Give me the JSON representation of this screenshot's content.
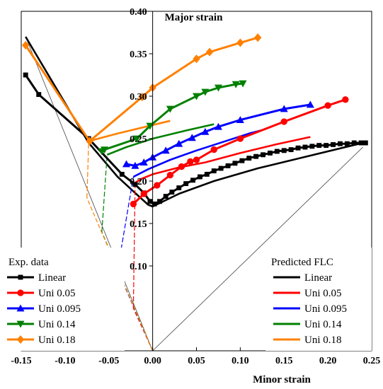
{
  "chart_data": {
    "type": "line",
    "xlabel": "Minor strain",
    "ylabel": "Major strain",
    "xlim": [
      -0.15,
      0.25
    ],
    "ylim": [
      0.0,
      0.4
    ],
    "x_ticks": [
      "-0.15",
      "-0.10",
      "-0.05",
      "0.00",
      "0.05",
      "0.10",
      "0.15",
      "0.20",
      "0.25"
    ],
    "y_ticks": [
      "0.10",
      "0.15",
      "0.20",
      "0.25",
      "0.30",
      "0.35",
      "0.40"
    ],
    "grid": false,
    "legends": {
      "experimental": {
        "title": "Exp. data",
        "placement": "bottom-left",
        "entries": [
          "Linear",
          "Uni 0.05",
          "Uni 0.095",
          "Uni 0.14",
          "Uni 0.18"
        ]
      },
      "predicted": {
        "title": "Predicted FLC",
        "placement": "bottom-right",
        "entries": [
          "Linear",
          "Uni 0.05",
          "Uni 0.095",
          "Uni 0.14",
          "Uni 0.18"
        ]
      }
    },
    "colors": {
      "Linear": "#000000",
      "Uni 0.05": "#ff0000",
      "Uni 0.095": "#0000ff",
      "Uni 0.14": "#008000",
      "Uni 0.18": "#ff8000"
    },
    "prestrain_paths": [
      {
        "name": "Uni 0.05",
        "x": [
          0.0,
          -0.022
        ],
        "y": [
          0.0,
          0.05
        ]
      },
      {
        "name": "Uni 0.095",
        "x": [
          0.0,
          -0.04
        ],
        "y": [
          0.0,
          0.095
        ]
      },
      {
        "name": "Uni 0.14",
        "x": [
          0.0,
          -0.058
        ],
        "y": [
          0.0,
          0.14
        ]
      },
      {
        "name": "Uni 0.18",
        "x": [
          0.0,
          -0.075
        ],
        "y": [
          0.0,
          0.18
        ]
      }
    ],
    "reference_lines": [
      {
        "name": "uniaxial",
        "x": [
          0.0,
          -0.145
        ],
        "y": [
          0.0,
          0.37
        ]
      },
      {
        "name": "equibiaxial",
        "x": [
          0.0,
          0.24
        ],
        "y": [
          0.0,
          0.24
        ]
      }
    ],
    "series": [
      {
        "name": "Linear",
        "kind": "experimental",
        "marker": "square",
        "x": [
          -0.145,
          -0.13,
          -0.073,
          -0.035,
          -0.02,
          -0.01,
          -0.003,
          0.002,
          0.008,
          0.015,
          0.022,
          0.03,
          0.038,
          0.046,
          0.054,
          0.062,
          0.07,
          0.078,
          0.086,
          0.094,
          0.102,
          0.11,
          0.118,
          0.126,
          0.134,
          0.142,
          0.15,
          0.158,
          0.166,
          0.174,
          0.182,
          0.19,
          0.198,
          0.206,
          0.214,
          0.222,
          0.23,
          0.238,
          0.243
        ],
        "y": [
          0.325,
          0.302,
          0.25,
          0.208,
          0.196,
          0.186,
          0.176,
          0.173,
          0.176,
          0.182,
          0.187,
          0.192,
          0.197,
          0.201,
          0.205,
          0.208,
          0.212,
          0.215,
          0.218,
          0.221,
          0.224,
          0.227,
          0.229,
          0.231,
          0.233,
          0.235,
          0.236,
          0.237,
          0.239,
          0.24,
          0.241,
          0.242,
          0.242,
          0.243,
          0.244,
          0.244,
          0.245,
          0.245,
          0.245
        ]
      },
      {
        "name": "Uni 0.05",
        "kind": "experimental",
        "marker": "circle",
        "x": [
          -0.022,
          -0.01,
          0.005,
          0.02,
          0.033,
          0.043,
          0.05,
          0.07,
          0.1,
          0.15,
          0.2,
          0.22
        ],
        "y": [
          0.173,
          0.185,
          0.195,
          0.207,
          0.217,
          0.223,
          0.225,
          0.237,
          0.25,
          0.27,
          0.289,
          0.296
        ]
      },
      {
        "name": "Uni 0.095",
        "kind": "experimental",
        "marker": "triangle-up",
        "x": [
          -0.03,
          -0.02,
          -0.01,
          0.0,
          0.015,
          0.03,
          0.045,
          0.06,
          0.075,
          0.1,
          0.15,
          0.18
        ],
        "y": [
          0.22,
          0.218,
          0.222,
          0.228,
          0.236,
          0.244,
          0.251,
          0.258,
          0.264,
          0.272,
          0.285,
          0.29
        ]
      },
      {
        "name": "Uni 0.14",
        "kind": "experimental",
        "marker": "triangle-down",
        "x": [
          -0.058,
          -0.055,
          -0.018,
          -0.003,
          0.02,
          0.05,
          0.06,
          0.075,
          0.095,
          0.103
        ],
        "y": [
          0.235,
          0.237,
          0.25,
          0.265,
          0.285,
          0.3,
          0.305,
          0.31,
          0.314,
          0.315
        ]
      },
      {
        "name": "Uni 0.18",
        "kind": "experimental",
        "marker": "diamond",
        "x": [
          -0.145,
          -0.072,
          -0.012,
          0.0,
          0.05,
          0.065,
          0.1,
          0.12
        ],
        "y": [
          0.36,
          0.247,
          0.299,
          0.31,
          0.344,
          0.352,
          0.363,
          0.369
        ]
      },
      {
        "name": "Linear",
        "kind": "predicted",
        "x": [
          -0.145,
          -0.073,
          -0.04,
          -0.02,
          -0.005,
          0.0,
          0.03,
          0.07,
          0.12,
          0.18,
          0.24
        ],
        "y": [
          0.37,
          0.245,
          0.205,
          0.186,
          0.172,
          0.17,
          0.185,
          0.2,
          0.215,
          0.23,
          0.245
        ]
      },
      {
        "name": "Uni 0.05",
        "kind": "predicted",
        "x": [
          -0.022,
          -0.02,
          -0.012,
          0.0,
          0.03,
          0.06,
          0.1,
          0.14,
          0.18
        ],
        "y": [
          0.05,
          0.198,
          0.203,
          0.208,
          0.216,
          0.222,
          0.233,
          0.243,
          0.252
        ]
      },
      {
        "name": "Uni 0.095",
        "kind": "predicted",
        "x": [
          -0.04,
          -0.022,
          -0.005,
          0.02,
          0.05,
          0.08,
          0.11,
          0.125
        ],
        "y": [
          0.095,
          0.205,
          0.214,
          0.225,
          0.236,
          0.246,
          0.256,
          0.26
        ]
      },
      {
        "name": "Uni 0.14",
        "kind": "predicted",
        "x": [
          -0.058,
          -0.052,
          -0.03,
          0.0,
          0.04,
          0.07
        ],
        "y": [
          0.14,
          0.231,
          0.24,
          0.25,
          0.26,
          0.267
        ]
      },
      {
        "name": "Uni 0.18",
        "kind": "predicted",
        "x": [
          -0.075,
          -0.073,
          -0.04,
          0.0,
          0.02
        ],
        "y": [
          0.18,
          0.247,
          0.256,
          0.266,
          0.271
        ]
      }
    ]
  }
}
